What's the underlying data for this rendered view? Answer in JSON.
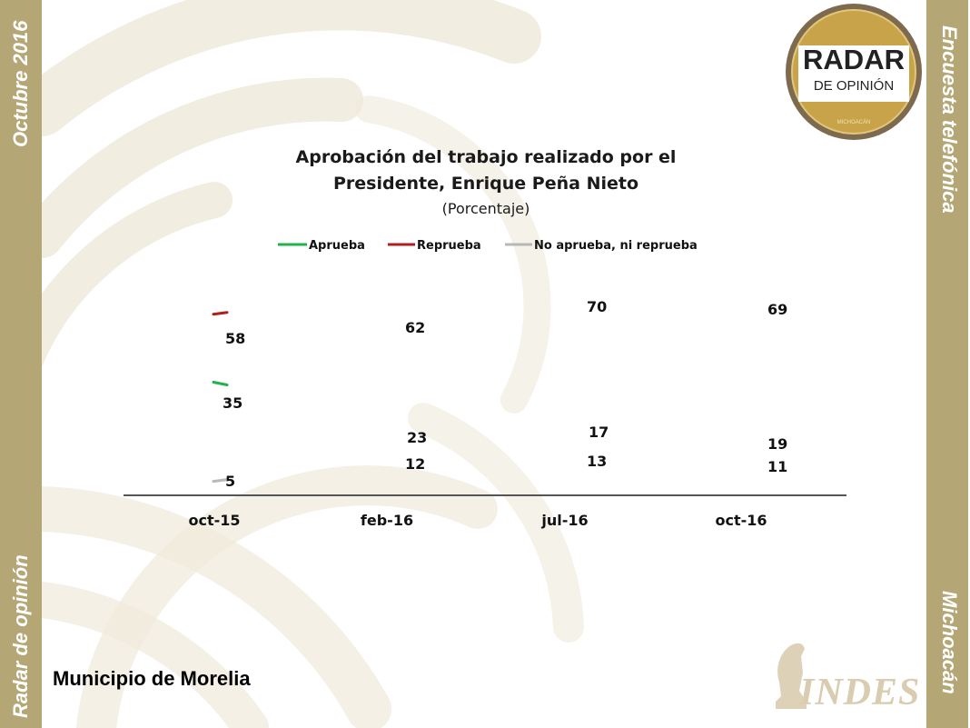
{
  "sidebar_left": {
    "top_text": "Octubre 2016",
    "bottom_text": "Radar de opinión"
  },
  "sidebar_right": {
    "top_text": "Encuesta telefónica",
    "bottom_text": "Michoacán"
  },
  "logo": {
    "line1": "RADAR",
    "line2": "DE OPINIÓN",
    "line3": "MICHOACÁN"
  },
  "indes_logo": {
    "text": "INDES"
  },
  "footer": {
    "title": "Municipio de Morelia"
  },
  "colors": {
    "sidebar": "#b5a775",
    "aprueba": "#22b14c",
    "reprueba": "#b01e1e",
    "neutral": "#b8b8b8"
  },
  "chart_data": {
    "type": "line",
    "title_line1": "Aprobación del trabajo realizado por el",
    "title_line2": "Presidente, Enrique Peña Nieto",
    "subtitle": "(Porcentaje)",
    "categories": [
      "oct-15",
      "feb-16",
      "jul-16",
      "oct-16"
    ],
    "series": [
      {
        "name": "Aprueba",
        "color": "#22b14c",
        "values": [
          35,
          23,
          17,
          11
        ]
      },
      {
        "name": "Reprueba",
        "color": "#b01e1e",
        "values": [
          58,
          62,
          70,
          69
        ]
      },
      {
        "name": "No aprueba, ni reprueba",
        "color": "#b8b8b8",
        "values": [
          5,
          12,
          13,
          19
        ]
      }
    ],
    "ylim": [
      0,
      85
    ],
    "legend_position": "top",
    "grid": false
  }
}
